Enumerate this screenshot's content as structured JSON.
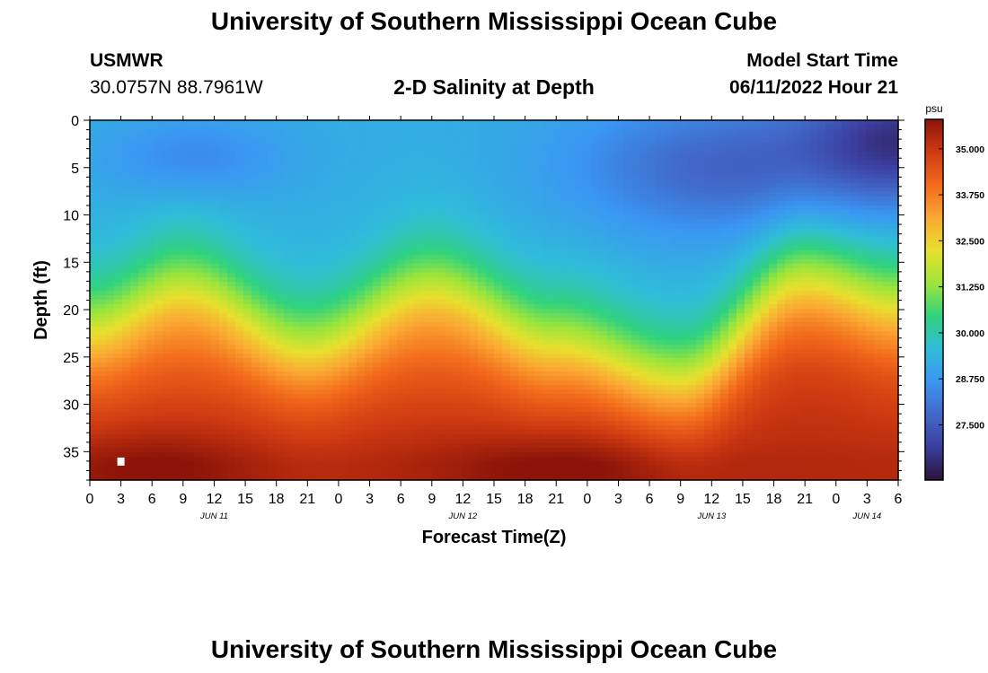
{
  "page": {
    "main_title": "University of Southern Mississippi Ocean Cube",
    "footer_title": "University of Southern Mississippi Ocean Cube",
    "station_name": "USMWR",
    "station_coords": "30.0757N  88.7961W",
    "model_start_label": "Model Start Time",
    "model_start_value": "06/11/2022 Hour 21"
  },
  "chart_data": {
    "type": "heatmap",
    "title": "2-D Salinity at Depth",
    "xlabel": "Forecast Time(Z)",
    "ylabel": "Depth (ft)",
    "x_tick_labels": [
      "0",
      "3",
      "6",
      "9",
      "12",
      "15",
      "18",
      "21",
      "0",
      "3",
      "6",
      "9",
      "12",
      "15",
      "18",
      "21",
      "0",
      "3",
      "6",
      "9",
      "12",
      "15",
      "18",
      "21",
      "0",
      "3",
      "6"
    ],
    "x_range_hours": [
      0,
      78
    ],
    "x_tick_step_hours": 3,
    "date_labels": [
      {
        "label": "JUN 11",
        "hour": 12
      },
      {
        "label": "JUN 12",
        "hour": 36
      },
      {
        "label": "JUN 13",
        "hour": 60
      },
      {
        "label": "JUN 14",
        "hour": 75
      }
    ],
    "y_range": [
      0,
      38
    ],
    "y_ticks": [
      0,
      5,
      10,
      15,
      20,
      25,
      30,
      35
    ],
    "y_inverted": true,
    "colorbar": {
      "units": "psu",
      "range": [
        26.0,
        35.8
      ],
      "tick_labels": [
        "35.000",
        "33.750",
        "32.500",
        "31.250",
        "30.000",
        "28.750",
        "27.500"
      ],
      "tick_values": [
        35.0,
        33.75,
        32.5,
        31.25,
        30.0,
        28.75,
        27.5
      ],
      "colors": [
        "#2a1436",
        "#3b3d9e",
        "#4169c9",
        "#3a96f2",
        "#2fbcd9",
        "#2fd37f",
        "#9ee53a",
        "#e8e02e",
        "#fba833",
        "#f26a1b",
        "#d03a11",
        "#8c1408"
      ]
    },
    "field_description": "Fresh layer (~27.5-29 psu) in upper 12 ft, halocline between 12 and 25 ft oscillating with tide (shallowest near hours 9, 33, 69), salty water (~34.5-35.5 psu) below 28 ft",
    "halocline_depth_by_hour": [
      {
        "hour": 0,
        "depth": 21.5
      },
      {
        "hour": 9,
        "depth": 17.5
      },
      {
        "hour": 21,
        "depth": 23.5
      },
      {
        "hour": 33,
        "depth": 17.5
      },
      {
        "hour": 45,
        "depth": 23
      },
      {
        "hour": 57,
        "depth": 27
      },
      {
        "hour": 69,
        "depth": 16.5
      },
      {
        "hour": 78,
        "depth": 19
      }
    ],
    "marker": {
      "hour": 3,
      "depth": 36
    }
  }
}
